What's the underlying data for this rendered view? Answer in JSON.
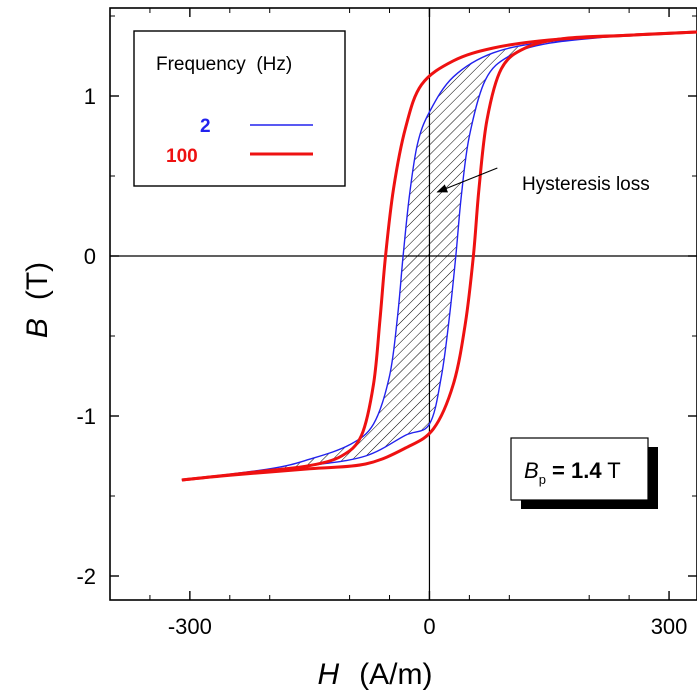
{
  "chart_data": {
    "type": "line",
    "xlim": [
      -400,
      335
    ],
    "ylim": [
      -2.15,
      1.55
    ],
    "xticks": [
      {
        "value": -300,
        "label": "-300"
      },
      {
        "value": 0,
        "label": "0"
      },
      {
        "value": 300,
        "label": "300"
      }
    ],
    "yticks": [
      {
        "value": -2,
        "label": "-2"
      },
      {
        "value": -1,
        "label": "-1"
      },
      {
        "value": 0,
        "label": "0"
      },
      {
        "value": 1,
        "label": "1"
      }
    ],
    "xlabel_symbol": "H",
    "xlabel_unit": "(A/m)",
    "ylabel_symbol": "B",
    "ylabel_unit": "(T)",
    "legend": {
      "title": "Frequency  (Hz)",
      "placement": "top-left",
      "entries": [
        {
          "label": "2",
          "color": "#2222ee"
        },
        {
          "label": "100",
          "color": "#ee1111"
        }
      ]
    },
    "series": [
      {
        "name": "2",
        "color": "#2222ee",
        "Bp": 1.4,
        "Hmax": 335,
        "upper_branch": [
          [
            -310,
            -1.4
          ],
          [
            -200,
            -1.33
          ],
          [
            -150,
            -1.27
          ],
          [
            -100,
            -1.18
          ],
          [
            -70,
            -1.05
          ],
          [
            -50,
            -0.75
          ],
          [
            -40,
            -0.38
          ],
          [
            -33,
            0.0
          ],
          [
            -25,
            0.38
          ],
          [
            -15,
            0.7
          ],
          [
            0,
            0.9
          ],
          [
            30,
            1.12
          ],
          [
            80,
            1.27
          ],
          [
            150,
            1.34
          ],
          [
            250,
            1.38
          ],
          [
            335,
            1.4
          ]
        ],
        "lower_branch": [
          [
            335,
            1.4
          ],
          [
            250,
            1.38
          ],
          [
            150,
            1.33
          ],
          [
            100,
            1.25
          ],
          [
            70,
            1.1
          ],
          [
            50,
            0.75
          ],
          [
            40,
            0.38
          ],
          [
            33,
            0.0
          ],
          [
            25,
            -0.38
          ],
          [
            15,
            -0.75
          ],
          [
            0,
            -1.05
          ],
          [
            -30,
            -1.12
          ],
          [
            -80,
            -1.25
          ],
          [
            -150,
            -1.31
          ],
          [
            -250,
            -1.37
          ],
          [
            -310,
            -1.4
          ]
        ]
      },
      {
        "name": "100",
        "color": "#ee1111",
        "Bp": 1.4,
        "Hmax": 335,
        "upper_branch": [
          [
            -310,
            -1.4
          ],
          [
            -200,
            -1.34
          ],
          [
            -150,
            -1.31
          ],
          [
            -110,
            -1.25
          ],
          [
            -85,
            -1.12
          ],
          [
            -70,
            -0.8
          ],
          [
            -62,
            -0.4
          ],
          [
            -55,
            0.0
          ],
          [
            -45,
            0.42
          ],
          [
            -30,
            0.8
          ],
          [
            -10,
            1.07
          ],
          [
            30,
            1.22
          ],
          [
            80,
            1.3
          ],
          [
            150,
            1.35
          ],
          [
            250,
            1.38
          ],
          [
            335,
            1.4
          ]
        ],
        "lower_branch": [
          [
            335,
            1.4
          ],
          [
            250,
            1.38
          ],
          [
            170,
            1.36
          ],
          [
            120,
            1.3
          ],
          [
            90,
            1.17
          ],
          [
            72,
            0.85
          ],
          [
            62,
            0.42
          ],
          [
            55,
            0.0
          ],
          [
            45,
            -0.42
          ],
          [
            30,
            -0.8
          ],
          [
            5,
            -1.08
          ],
          [
            -30,
            -1.2
          ],
          [
            -80,
            -1.3
          ],
          [
            -150,
            -1.33
          ],
          [
            -250,
            -1.37
          ],
          [
            -310,
            -1.4
          ]
        ]
      }
    ],
    "annotations": {
      "hysteresis_text": "Hysteresis loss",
      "arrow_from": [
        85,
        0.55
      ],
      "arrow_to": [
        10,
        0.4
      ],
      "bp_symbol": "B",
      "bp_subscript": "p",
      "bp_value_text": " = 1.4",
      "bp_unit": " T"
    },
    "grid": false
  }
}
